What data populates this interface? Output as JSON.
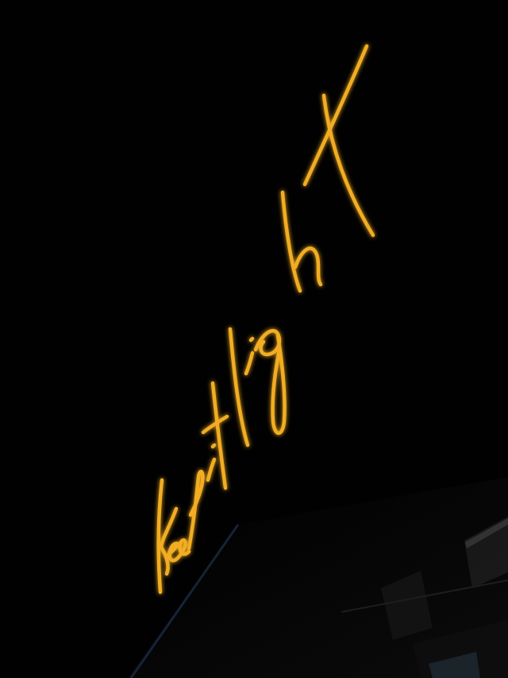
{
  "photo": {
    "background_color": "#010101",
    "neon_color": "#f2ad22",
    "neon_glow_color": "#ffb52e",
    "building_color": "#070707",
    "edge_highlight_color": "#1b2b44",
    "window_color": "#2a3a4a"
  },
  "neon_sign": {
    "text": "Keep it light",
    "style": "handwritten-cursive"
  }
}
